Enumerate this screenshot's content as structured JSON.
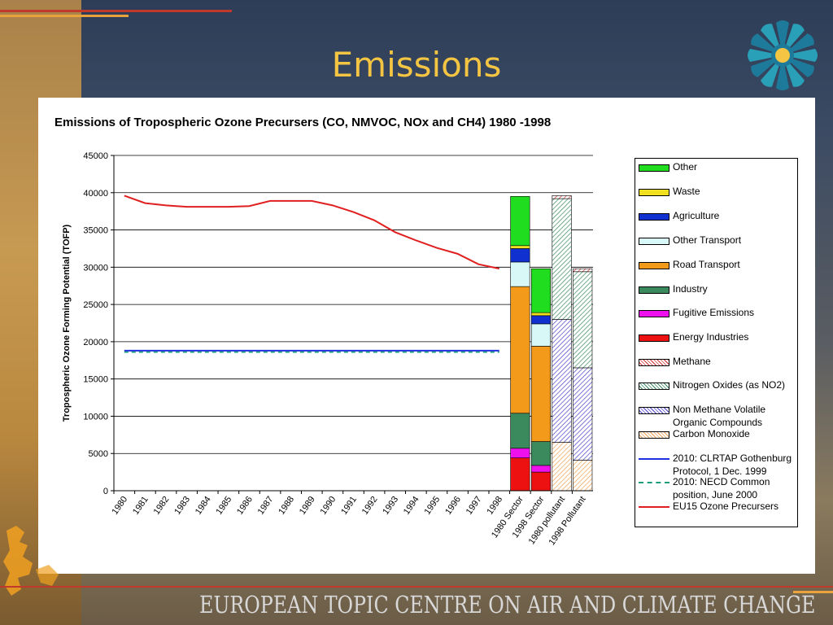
{
  "slide": {
    "title": "Emissions",
    "footer": "EUROPEAN TOPIC CENTRE ON AIR AND CLIMATE CHANGE",
    "logo_icon": "sun-wheel-logo-icon",
    "accent_red": "#c0392b",
    "accent_gold": "#f4c542"
  },
  "chart_data": {
    "type": "bar",
    "title": "Emissions of Tropospheric Ozone Precursers (CO, NMVOC, NOx and CH4) 1980 -1998",
    "ylabel": "Tropospheric Ozone Forming Potential (TOFP)",
    "xlabel": "",
    "ylim": [
      0,
      45000
    ],
    "yticks": [
      "0",
      "5000",
      "10000",
      "15000",
      "20000",
      "25000",
      "30000",
      "35000",
      "40000",
      "45000"
    ],
    "grid": true,
    "legend_position": "right",
    "categories": [
      "1980",
      "1981",
      "1982",
      "1983",
      "1984",
      "1985",
      "1986",
      "1987",
      "1988",
      "1989",
      "1990",
      "1991",
      "1992",
      "1993",
      "1994",
      "1995",
      "1996",
      "1997",
      "1998",
      "1980 Sector",
      "1998 Sector",
      "1980 pollutant",
      "1998 Pollutant"
    ],
    "line_series": [
      {
        "name": "EU15 Ozone Precursers",
        "color": "#e02020",
        "style": "solid",
        "values": [
          39600,
          38600,
          38300,
          38100,
          38100,
          38100,
          38200,
          38900,
          38900,
          38900,
          38300,
          37400,
          36300,
          34700,
          33600,
          32600,
          31800,
          30400,
          29800
        ]
      },
      {
        "name": "2010: CLRTAP Gothenburg Protocol, 1 Dec. 1999",
        "color": "#2030e0",
        "style": "solid",
        "values": [
          18800,
          18800,
          18800,
          18800,
          18800,
          18800,
          18800,
          18800,
          18800,
          18800,
          18800,
          18800,
          18800,
          18800,
          18800,
          18800,
          18800,
          18800,
          18800
        ]
      },
      {
        "name": "2010: NECD Common position, June 2000",
        "color": "#1a9c7a",
        "style": "dashed",
        "values": [
          18600,
          18600,
          18600,
          18600,
          18600,
          18600,
          18600,
          18600,
          18600,
          18600,
          18600,
          18600,
          18600,
          18600,
          18600,
          18600,
          18600,
          18600,
          18600
        ]
      }
    ],
    "bar_series": [
      {
        "name": "Energy Industries",
        "color": "#ee1111",
        "pattern": "solid",
        "values": [
          4400,
          2500,
          0,
          0
        ]
      },
      {
        "name": "Fugitive Emissions",
        "color": "#ee11ee",
        "pattern": "solid",
        "values": [
          1300,
          900,
          0,
          0
        ]
      },
      {
        "name": "Industry",
        "color": "#3a8a5e",
        "pattern": "solid",
        "values": [
          4700,
          3200,
          0,
          0
        ]
      },
      {
        "name": "Road Transport",
        "color": "#f39a1a",
        "pattern": "solid",
        "values": [
          17000,
          12800,
          0,
          0
        ]
      },
      {
        "name": "Other Transport",
        "color": "#d8f7f7",
        "pattern": "solid",
        "values": [
          3300,
          3000,
          0,
          0
        ]
      },
      {
        "name": "Agriculture",
        "color": "#1030d0",
        "pattern": "solid",
        "values": [
          1800,
          1100,
          0,
          0
        ]
      },
      {
        "name": "Waste",
        "color": "#f0e020",
        "pattern": "solid",
        "values": [
          400,
          400,
          0,
          0
        ]
      },
      {
        "name": "Other",
        "color": "#20dd20",
        "pattern": "solid",
        "values": [
          6600,
          5900,
          0,
          0
        ]
      },
      {
        "name": "Carbon Monoxide",
        "color": "#f0a050",
        "pattern": "hatch",
        "values": [
          0,
          0,
          6500,
          4100
        ]
      },
      {
        "name": "Non Methane Volatile Organic Compounds",
        "color": "#4a40c8",
        "pattern": "hatch",
        "values": [
          0,
          0,
          16500,
          12400
        ]
      },
      {
        "name": "Nitrogen Oxides (as NO2)",
        "color": "#3a8a5e",
        "pattern": "hatch",
        "values": [
          0,
          0,
          16200,
          12900
        ]
      },
      {
        "name": "Methane",
        "color": "#d03030",
        "pattern": "hatch",
        "values": [
          0,
          0,
          400,
          400
        ]
      }
    ],
    "legend": [
      {
        "label": "Other",
        "kind": "solid",
        "color": "#20dd20"
      },
      {
        "label": "Waste",
        "kind": "solid",
        "color": "#f0e020"
      },
      {
        "label": "Agriculture",
        "kind": "solid",
        "color": "#1030d0"
      },
      {
        "label": "Other Transport",
        "kind": "solid",
        "color": "#d8f7f7"
      },
      {
        "label": "Road Transport",
        "kind": "solid",
        "color": "#f39a1a"
      },
      {
        "label": "Industry",
        "kind": "solid",
        "color": "#3a8a5e"
      },
      {
        "label": "Fugitive Emissions",
        "kind": "solid",
        "color": "#ee11ee"
      },
      {
        "label": "Energy Industries",
        "kind": "solid",
        "color": "#ee1111"
      },
      {
        "label": "Methane",
        "kind": "hatch",
        "color": "#d03030"
      },
      {
        "label": "Nitrogen Oxides (as NO2)",
        "kind": "hatch",
        "color": "#3a8a5e"
      },
      {
        "label": "Non Methane Volatile Organic Compounds",
        "kind": "hatch",
        "color": "#4a40c8"
      },
      {
        "label": "Carbon Monoxide",
        "kind": "hatch",
        "color": "#f0a050"
      },
      {
        "label": "2010: CLRTAP Gothenburg Protocol, 1 Dec. 1999",
        "kind": "line",
        "color": "#2030e0"
      },
      {
        "label": "2010: NECD Common position, June 2000",
        "kind": "dashed",
        "color": "#1a9c7a"
      },
      {
        "label": "EU15 Ozone Precursers",
        "kind": "line",
        "color": "#e02020"
      }
    ]
  }
}
